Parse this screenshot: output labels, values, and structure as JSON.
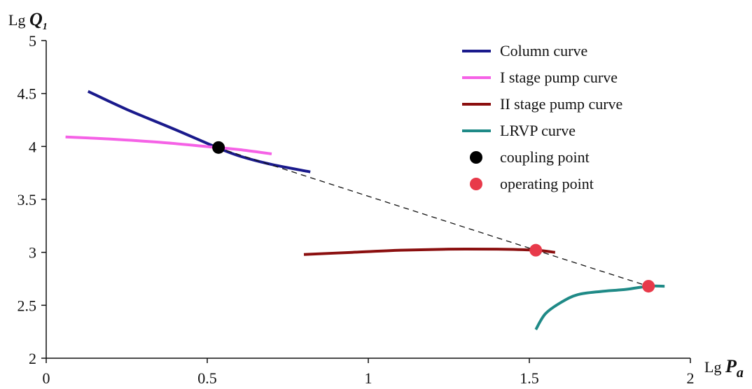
{
  "chart_data": {
    "type": "line",
    "title": "",
    "xlabel": {
      "prefix": "Lg",
      "symbol": "P",
      "subscript": "a"
    },
    "ylabel": {
      "prefix": "Lg",
      "symbol": "Q",
      "subscript": "1"
    },
    "xlim": [
      0,
      2
    ],
    "ylim": [
      2,
      5
    ],
    "xticks": [
      "0",
      "0.5",
      "1",
      "1.5",
      "2"
    ],
    "xtick_values": [
      0,
      0.5,
      1,
      1.5,
      2
    ],
    "yticks": [
      "2",
      "2.5",
      "3",
      "3.5",
      "4",
      "4.5",
      "5"
    ],
    "ytick_values": [
      2,
      2.5,
      3,
      3.5,
      4,
      4.5,
      5
    ],
    "grid": false,
    "legend_position": "top-right",
    "series": [
      {
        "name": "Column curve",
        "color": "#1a1a8c",
        "style": "solid",
        "points": [
          [
            0.13,
            4.52
          ],
          [
            0.25,
            4.35
          ],
          [
            0.4,
            4.16
          ],
          [
            0.53,
            3.99
          ],
          [
            0.6,
            3.91
          ],
          [
            0.7,
            3.83
          ],
          [
            0.82,
            3.76
          ]
        ]
      },
      {
        "name": "I stage pump curve",
        "color": "#f562e6",
        "style": "solid",
        "points": [
          [
            0.06,
            4.09
          ],
          [
            0.2,
            4.07
          ],
          [
            0.35,
            4.04
          ],
          [
            0.53,
            3.99
          ],
          [
            0.6,
            3.97
          ],
          [
            0.7,
            3.93
          ]
        ]
      },
      {
        "name": "II stage pump curve",
        "color": "#8b0f0f",
        "style": "solid",
        "points": [
          [
            0.8,
            2.98
          ],
          [
            0.95,
            3.0
          ],
          [
            1.1,
            3.02
          ],
          [
            1.25,
            3.03
          ],
          [
            1.4,
            3.03
          ],
          [
            1.52,
            3.02
          ],
          [
            1.58,
            3.0
          ]
        ]
      },
      {
        "name": "LRVP curve",
        "color": "#1f8a87",
        "style": "solid",
        "points": [
          [
            1.52,
            2.27
          ],
          [
            1.55,
            2.42
          ],
          [
            1.6,
            2.53
          ],
          [
            1.65,
            2.6
          ],
          [
            1.72,
            2.63
          ],
          [
            1.8,
            2.65
          ],
          [
            1.87,
            2.68
          ],
          [
            1.92,
            2.68
          ]
        ]
      },
      {
        "name": "",
        "color": "#111111",
        "style": "dashed",
        "points": [
          [
            0.53,
            3.99
          ],
          [
            1.52,
            3.02
          ],
          [
            1.87,
            2.68
          ]
        ]
      },
      {
        "name": "coupling point",
        "color": "#000000",
        "style": "marker",
        "points": [
          [
            0.535,
            3.99
          ]
        ]
      },
      {
        "name": "operating point",
        "color": "#e83a4a",
        "style": "marker",
        "points": [
          [
            1.52,
            3.02
          ],
          [
            1.87,
            2.68
          ]
        ]
      }
    ],
    "legend": [
      {
        "label": "Column curve",
        "kind": "line",
        "color": "#1a1a8c"
      },
      {
        "label": "I stage pump curve",
        "kind": "line",
        "color": "#f562e6"
      },
      {
        "label": "II stage pump curve",
        "kind": "line",
        "color": "#8b0f0f"
      },
      {
        "label": "LRVP curve",
        "kind": "line",
        "color": "#1f8a87"
      },
      {
        "label": "coupling point",
        "kind": "marker",
        "color": "#000000"
      },
      {
        "label": "operating point",
        "kind": "marker",
        "color": "#e83a4a"
      }
    ]
  }
}
